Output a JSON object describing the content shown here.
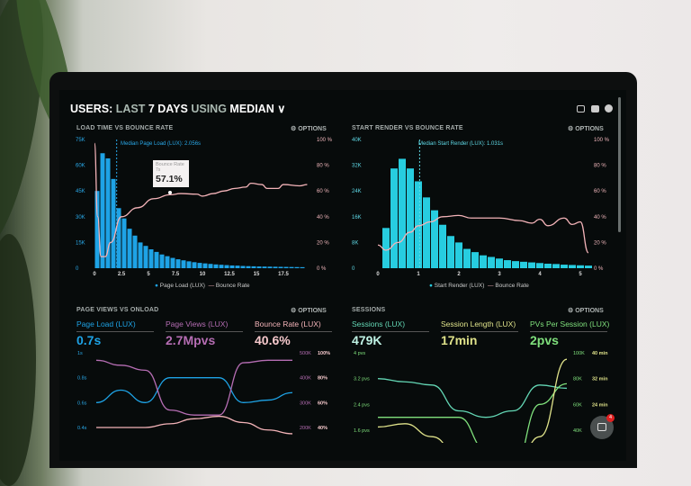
{
  "header": {
    "prefix": "USERS:",
    "last": "LAST",
    "days": "7 DAYS",
    "using": "USING",
    "mode": "MEDIAN",
    "icons": [
      "monitor-icon",
      "image-icon",
      "help-icon"
    ]
  },
  "colors": {
    "blue": "#1ea3e6",
    "cyan": "#27cde0",
    "bounce": "#f3b3b8",
    "pink": "#b56db3",
    "teal": "#63d6b4",
    "green": "#7fe07c",
    "yellow": "#dfe28a"
  },
  "panels": {
    "load": {
      "title": "LOAD TIME VS BOUNCE RATE",
      "options": "OPTIONS",
      "median": "Median Page Load (LUX): 2.056s",
      "tooltip": {
        "label": "Bounce Rate",
        "x": "7s",
        "value": "57.1%"
      },
      "legend": [
        "Page Load (LUX)",
        "Bounce Rate"
      ]
    },
    "render": {
      "title": "START RENDER VS BOUNCE RATE",
      "options": "OPTIONS",
      "median": "Median Start Render (LUX): 1.031s",
      "legend": [
        "Start Render (LUX)",
        "Bounce Rate"
      ]
    },
    "pageviews": {
      "title": "PAGE VIEWS VS ONLOAD",
      "options": "OPTIONS",
      "kpis": [
        {
          "label": "Page Load (LUX)",
          "value": "0.7s"
        },
        {
          "label": "Page Views (LUX)",
          "value": "2.7Mpvs"
        },
        {
          "label": "Bounce Rate (LUX)",
          "value": "40.6%"
        }
      ]
    },
    "sessions": {
      "title": "SESSIONS",
      "options": "OPTIONS",
      "kpis": [
        {
          "label": "Sessions (LUX)",
          "value": "479K"
        },
        {
          "label": "Session Length (LUX)",
          "value": "17min"
        },
        {
          "label": "PVs Per Session (LUX)",
          "value": "2pvs"
        }
      ]
    }
  },
  "chat": {
    "badge": "4"
  },
  "chart_data": [
    {
      "type": "bar",
      "title": "LOAD TIME VS BOUNCE RATE",
      "bar_width": 0.5,
      "x_ticks": [
        "0",
        "2.5",
        "5",
        "7.5",
        "10",
        "12.5",
        "15",
        "17.5"
      ],
      "y_ticks": [
        "0",
        "15K",
        "30K",
        "45K",
        "60K",
        "75K"
      ],
      "y2_ticks": [
        "0 %",
        "20 %",
        "40 %",
        "60 %",
        "80 %",
        "100 %"
      ],
      "xlim": [
        0,
        20
      ],
      "ylim": [
        0,
        75000
      ],
      "y2lim": [
        0,
        100
      ],
      "median": 2.056,
      "series": [
        {
          "name": "Page Load (LUX)",
          "type": "bar",
          "x_start": 0,
          "values": [
            45000,
            67000,
            64000,
            52000,
            35000,
            29000,
            23000,
            19000,
            15000,
            13000,
            11000,
            9500,
            8000,
            7000,
            6000,
            5200,
            4600,
            4000,
            3500,
            3100,
            2800,
            2500,
            2200,
            2000,
            1800,
            1600,
            1500,
            1300,
            1200,
            1100,
            1000,
            950,
            900,
            850,
            800,
            750,
            700,
            650,
            600
          ]
        },
        {
          "name": "Bounce Rate",
          "type": "line",
          "axis": "y2",
          "points": [
            [
              0,
              97
            ],
            [
              0.3,
              40
            ],
            [
              0.6,
              9
            ],
            [
              1,
              9
            ],
            [
              1.5,
              20
            ],
            [
              2.5,
              40
            ],
            [
              4,
              47
            ],
            [
              5.5,
              54
            ],
            [
              7,
              57.1
            ],
            [
              8,
              58
            ],
            [
              9.5,
              57.5
            ],
            [
              10,
              56
            ],
            [
              11,
              58
            ],
            [
              12,
              60
            ],
            [
              13,
              62
            ],
            [
              14,
              63
            ],
            [
              14.5,
              66
            ],
            [
              15.5,
              65
            ],
            [
              16,
              62
            ],
            [
              17,
              62
            ],
            [
              17.5,
              65
            ],
            [
              19,
              64
            ],
            [
              19.7,
              65
            ]
          ]
        }
      ]
    },
    {
      "type": "bar",
      "title": "START RENDER VS BOUNCE RATE",
      "bar_width": 0.2,
      "x_ticks": [
        "0",
        "1",
        "2",
        "3",
        "4",
        "5"
      ],
      "y_ticks": [
        "0",
        "8K",
        "16K",
        "24K",
        "32K",
        "40K"
      ],
      "y2_ticks": [
        "0 %",
        "20 %",
        "40 %",
        "60 %",
        "80 %",
        "100 %"
      ],
      "xlim": [
        0,
        5.4
      ],
      "ylim": [
        0,
        40000
      ],
      "y2lim": [
        0,
        100
      ],
      "median": 1.031,
      "series": [
        {
          "name": "Start Render (LUX)",
          "type": "bar",
          "x_start": 0.1,
          "values": [
            12500,
            31000,
            34000,
            31000,
            27000,
            22000,
            18000,
            13500,
            10000,
            8000,
            6000,
            5000,
            4000,
            3500,
            3000,
            2500,
            2200,
            2000,
            1800,
            1600,
            1400,
            1300,
            1100,
            1000,
            900,
            800
          ]
        },
        {
          "name": "Bounce Rate",
          "type": "line",
          "axis": "y2",
          "points": [
            [
              0,
              18
            ],
            [
              0.2,
              14
            ],
            [
              0.5,
              20
            ],
            [
              0.8,
              28
            ],
            [
              1,
              33
            ],
            [
              1.3,
              36
            ],
            [
              1.6,
              40
            ],
            [
              2,
              41
            ],
            [
              2.3,
              39
            ],
            [
              3,
              39
            ],
            [
              3.5,
              37
            ],
            [
              3.8,
              35
            ],
            [
              4,
              38
            ],
            [
              4.2,
              33
            ],
            [
              4.6,
              39
            ],
            [
              4.8,
              34
            ],
            [
              5,
              36
            ],
            [
              5.2,
              12
            ]
          ]
        }
      ]
    },
    {
      "type": "line",
      "title": "PAGE VIEWS VS ONLOAD",
      "y_ticks": [
        "1s",
        "0.8s",
        "0.6s",
        "0.4s"
      ],
      "y2_ticks": [
        "500K",
        "400K",
        "300K",
        "200K"
      ],
      "y3_ticks": [
        "100%",
        "80%",
        "60%",
        "40%"
      ],
      "ylim": [
        0.4,
        1
      ],
      "y2lim": [
        200000,
        500000
      ],
      "y3lim": [
        40,
        100
      ],
      "series": [
        {
          "name": "Page Load (LUX)",
          "axis": "y",
          "values": [
            0.6,
            0.7,
            0.6,
            0.8,
            0.8,
            0.8,
            0.6,
            0.62,
            0.68
          ]
        },
        {
          "name": "Page Views (LUX)",
          "axis": "y2",
          "values": [
            470000,
            450000,
            430000,
            270000,
            250000,
            250000,
            460000,
            470000,
            470000
          ]
        },
        {
          "name": "Bounce Rate (LUX)",
          "axis": "y3",
          "values": [
            40,
            40,
            40,
            43,
            47,
            49,
            44,
            38,
            35
          ]
        }
      ]
    },
    {
      "type": "line",
      "title": "SESSIONS",
      "y_ticks": [
        "4 pvs",
        "3.2 pvs",
        "2.4 pvs",
        "1.6 pvs"
      ],
      "y2_ticks": [
        "100K",
        "80K",
        "60K",
        "40K"
      ],
      "y3_ticks": [
        "40 min",
        "32 min",
        "24 min"
      ],
      "ylim": [
        1.6,
        4
      ],
      "y2lim": [
        40000,
        100000
      ],
      "y3lim": [
        16,
        40
      ],
      "series": [
        {
          "name": "PVs Per Session (LUX)",
          "axis": "y",
          "values": [
            3.2,
            3.1,
            3.0,
            2.2,
            2.0,
            2.2,
            3.0,
            2.9
          ]
        },
        {
          "name": "Sessions (LUX)",
          "axis": "y2",
          "values": [
            50000,
            50000,
            50000,
            50000,
            25000,
            10000,
            60000,
            76000
          ]
        },
        {
          "name": "Session Length (LUX)",
          "axis": "y3",
          "values": [
            17,
            18,
            14,
            8,
            2,
            2,
            14,
            38
          ]
        }
      ]
    }
  ]
}
